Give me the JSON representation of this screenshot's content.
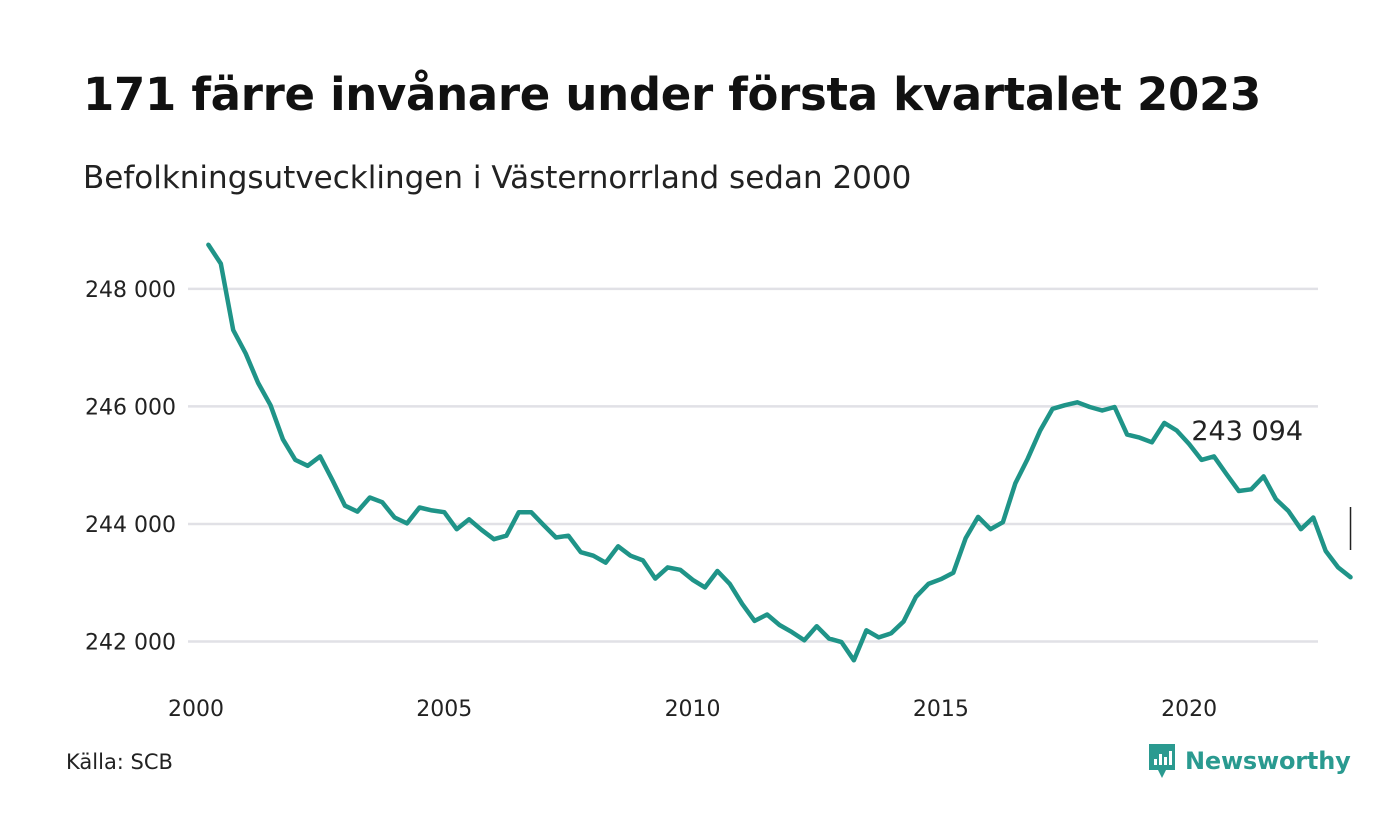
{
  "header": {
    "title": "171 färre invånare under första kvartalet 2023",
    "subtitle": "Befolkningsutvecklingen i Västernorrland sedan 2000"
  },
  "footer": {
    "source": "Källa: SCB",
    "brand": "Newsworthy",
    "brand_icon": "newsworthy-chart-bubble-icon"
  },
  "colors": {
    "line": "#1f9488",
    "grid": "#e1e1e6",
    "brand": "#2a9a90",
    "text": "#111111"
  },
  "chart_data": {
    "type": "line",
    "title": "171 färre invånare under första kvartalet 2023",
    "subtitle": "Befolkningsutvecklingen i Västernorrland sedan 2000",
    "xlabel": "",
    "ylabel": "",
    "xlim": [
      2000.0,
      2024.75
    ],
    "ylim": [
      241600,
      248900
    ],
    "x_ticks": [
      2000,
      2005,
      2010,
      2015,
      2020
    ],
    "x_tick_labels": [
      "2000",
      "2005",
      "2010",
      "2015",
      "2020"
    ],
    "y_ticks": [
      242000,
      244000,
      246000,
      248000
    ],
    "y_tick_labels": [
      "242 000",
      "244 000",
      "246 000",
      "248 000"
    ],
    "grid": "horizontal",
    "legend": "none",
    "annotation": {
      "label": "243 094",
      "x": 2023.25,
      "y": 243094
    },
    "series": [
      {
        "x": [
          2000.25,
          2000.5,
          2000.75,
          2001.0,
          2001.25,
          2001.5,
          2001.75,
          2002.0,
          2002.25,
          2002.5,
          2002.75,
          2003.0,
          2003.25,
          2003.5,
          2003.75,
          2004.0,
          2004.25,
          2004.5,
          2004.75,
          2005.0,
          2005.25,
          2005.5,
          2005.75,
          2006.0,
          2006.25,
          2006.5,
          2006.75,
          2007.0,
          2007.25,
          2007.5,
          2007.75,
          2008.0,
          2008.25,
          2008.5,
          2008.75,
          2009.0,
          2009.25,
          2009.5,
          2009.75,
          2010.0,
          2010.25,
          2010.5,
          2010.75,
          2011.0,
          2011.25,
          2011.5,
          2011.75,
          2012.0,
          2012.25,
          2012.5,
          2012.75,
          2013.0,
          2013.25,
          2013.5,
          2013.75,
          2014.0,
          2014.25,
          2014.5,
          2014.75,
          2015.0,
          2015.25,
          2015.5,
          2015.75,
          2016.0,
          2016.25,
          2016.5,
          2016.75,
          2017.0,
          2017.25,
          2017.5,
          2017.75,
          2018.0,
          2018.25,
          2018.5,
          2018.75,
          2019.0,
          2019.25,
          2019.5,
          2019.75,
          2020.0,
          2020.25,
          2020.5,
          2020.75,
          2021.0,
          2021.25,
          2021.5,
          2021.75,
          2022.0,
          2022.25,
          2022.5,
          2022.75,
          2023.0,
          2023.25
        ],
        "values": [
          248750,
          248430,
          247300,
          246900,
          246400,
          246020,
          245440,
          245090,
          244990,
          245150,
          244740,
          244310,
          244210,
          244450,
          244370,
          244110,
          244010,
          244280,
          244230,
          244200,
          243910,
          244080,
          243900,
          243740,
          243800,
          244200,
          244200,
          243980,
          243770,
          243800,
          243520,
          243460,
          243340,
          243620,
          243460,
          243380,
          243070,
          243260,
          243220,
          243050,
          242920,
          243200,
          242980,
          242640,
          242350,
          242460,
          242280,
          242160,
          242020,
          242260,
          242050,
          241990,
          241680,
          242190,
          242070,
          242140,
          242340,
          242760,
          242980,
          243060,
          243170,
          243760,
          244120,
          243910,
          244030,
          244690,
          245110,
          245590,
          245960,
          246020,
          246070,
          245990,
          245930,
          245990,
          245520,
          245470,
          245390,
          245720,
          245590,
          245360,
          245090,
          245150,
          244850,
          244560,
          244590,
          244810,
          244420,
          244220,
          243910,
          244110,
          243540,
          243260,
          243094
        ]
      }
    ]
  }
}
